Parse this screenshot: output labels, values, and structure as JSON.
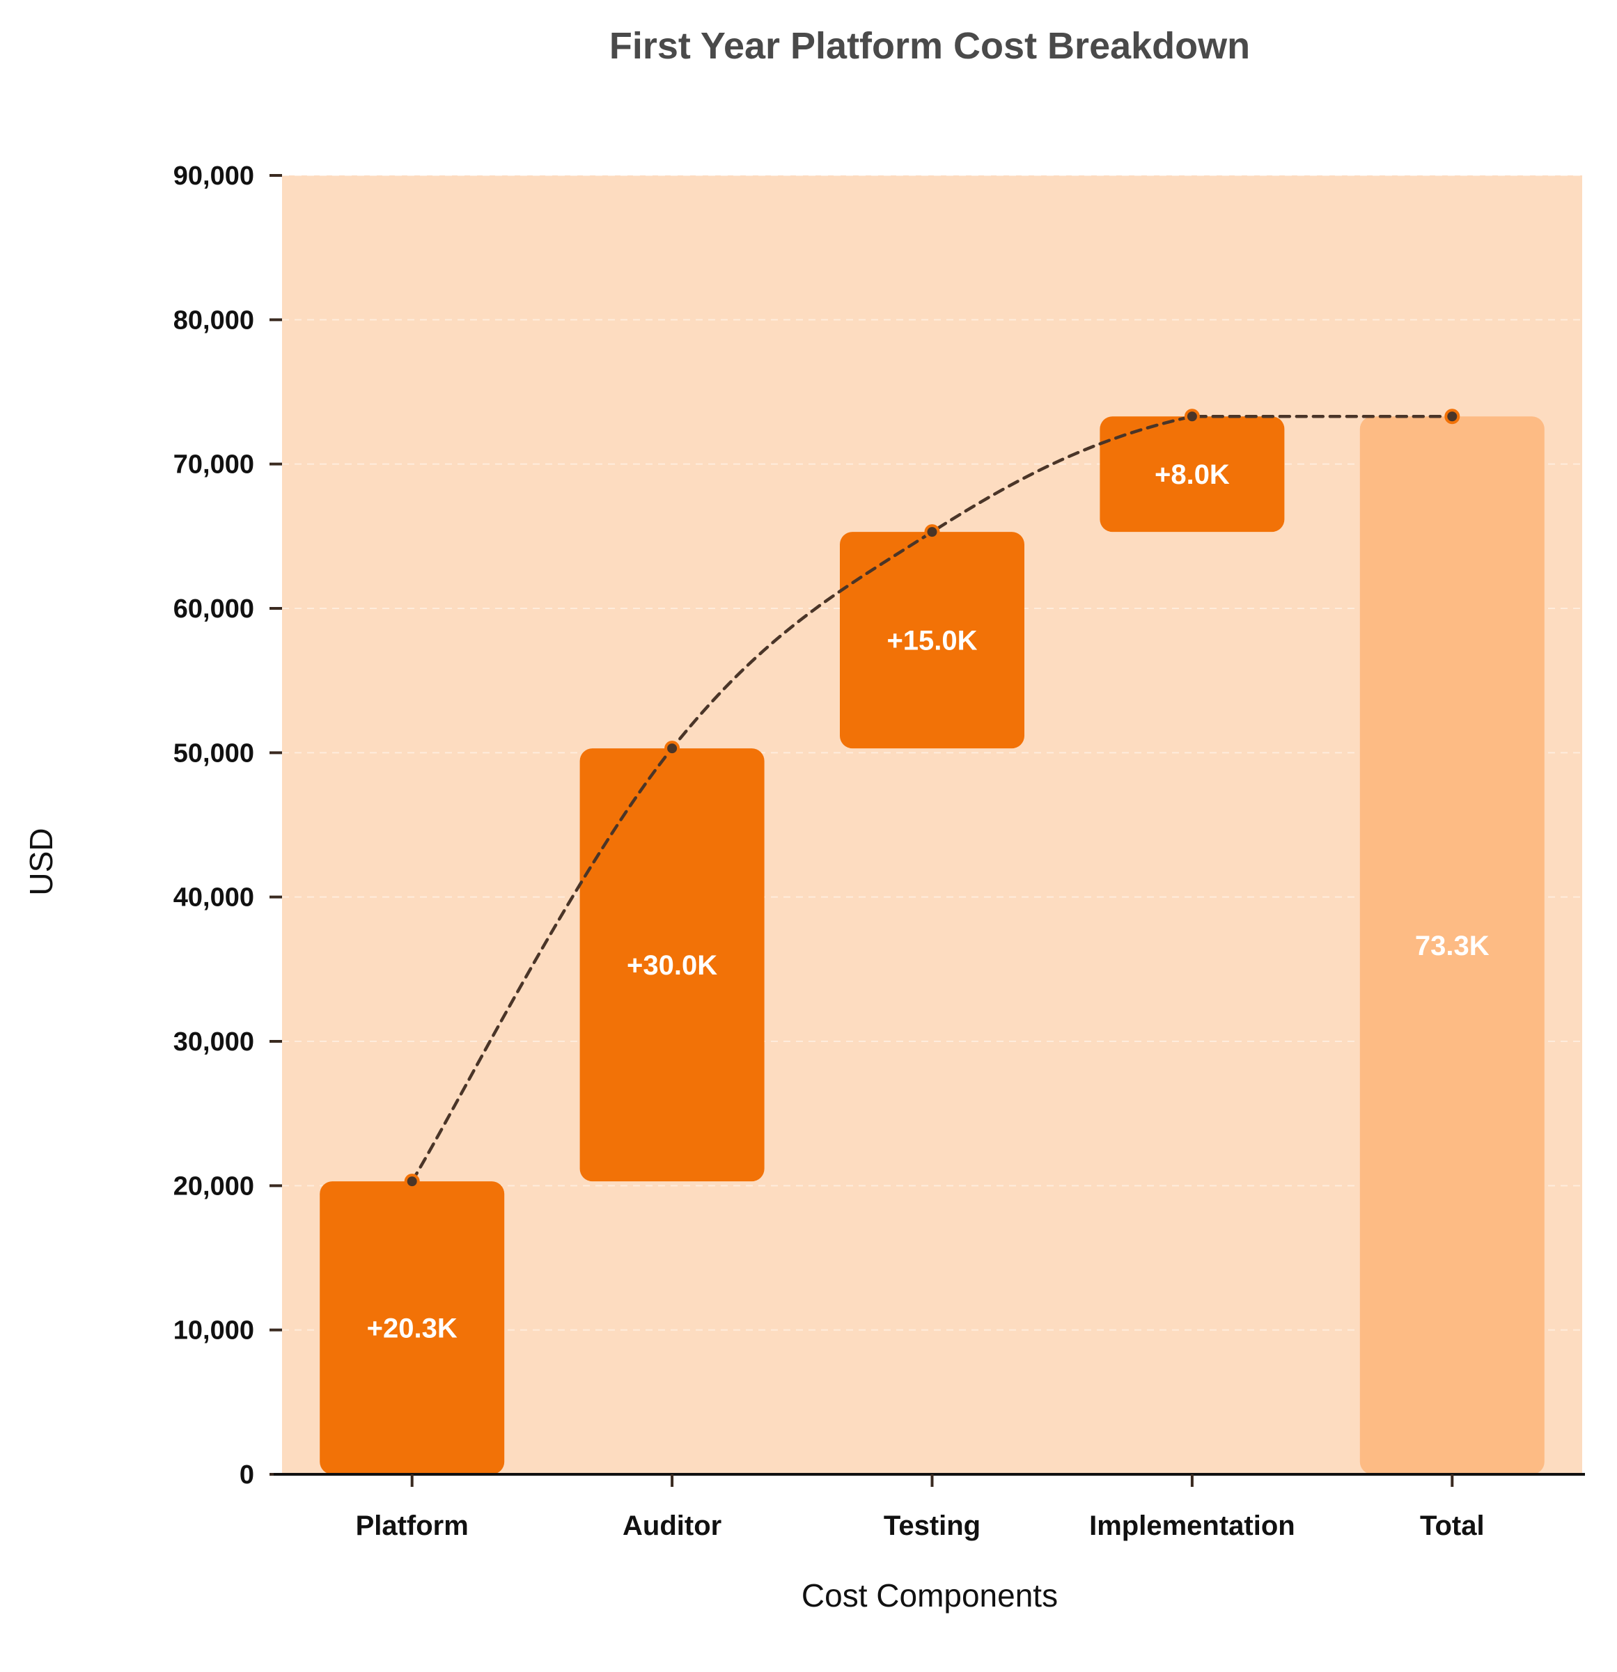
{
  "chart_data": {
    "type": "bar",
    "subtype": "waterfall",
    "title": "First Year Platform Cost Breakdown",
    "xlabel": "Cost Components",
    "ylabel": "USD",
    "categories": [
      "Platform",
      "Auditor",
      "Testing",
      "Implementation",
      "Total"
    ],
    "increments": [
      20300,
      30000,
      15000,
      8000
    ],
    "total": 73300,
    "bar_labels": [
      "+20.3K",
      "+30.0K",
      "+15.0K",
      "+8.0K",
      "73.3K"
    ],
    "ylim": [
      0,
      90000
    ],
    "yticks": [
      0,
      10000,
      20000,
      30000,
      40000,
      50000,
      60000,
      70000,
      80000,
      90000
    ],
    "ytick_labels": [
      "0",
      "10,000",
      "20,000",
      "30,000",
      "40,000",
      "50,000",
      "60,000",
      "70,000",
      "80,000",
      "90,000"
    ],
    "grid": true,
    "connector_line": "dashed",
    "colors": {
      "plot_background": "#FDDCC0",
      "increment_bar": "#F27207",
      "total_bar": "#FDBB84",
      "connector": "#4a3528",
      "marker": "#F27207"
    }
  }
}
